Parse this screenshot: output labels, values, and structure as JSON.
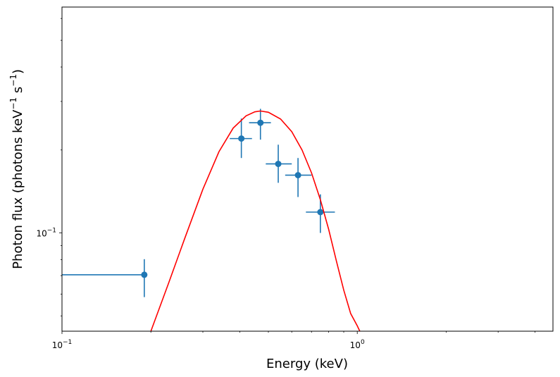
{
  "chart_data": {
    "type": "scatter",
    "title": "",
    "xlabel": "Energy (keV)",
    "ylabel": {
      "prefix": "Photon flux (photons keV",
      "exp1": "−1",
      "mid": " s",
      "exp2": "−1",
      "suffix": ")"
    },
    "xscale": "log",
    "yscale": "log",
    "xlim": [
      0.1,
      4.6
    ],
    "ylim": [
      0.044,
      0.66
    ],
    "grid": false,
    "legend": "none",
    "x_major_ticks": [
      {
        "value": 0.1,
        "base": "10",
        "exp": "−1"
      },
      {
        "value": 1.0,
        "base": "10",
        "exp": "0"
      }
    ],
    "y_major_ticks": [
      {
        "value": 0.1,
        "base": "10",
        "exp": "−1"
      }
    ],
    "series": [
      {
        "kind": "errorbar",
        "color": "#1f77b4",
        "points": [
          {
            "x": 0.19,
            "y": 0.0705,
            "xerr": [
              0.09,
              0.19
            ],
            "yerr": [
              0.0585,
              0.0803
            ]
          },
          {
            "x": 0.405,
            "y": 0.22,
            "xerr": [
              0.37,
              0.44
            ],
            "yerr": [
              0.187,
              0.26
            ]
          },
          {
            "x": 0.47,
            "y": 0.251,
            "xerr": [
              0.43,
              0.51
            ],
            "yerr": [
              0.218,
              0.282
            ]
          },
          {
            "x": 0.54,
            "y": 0.178,
            "xerr": [
              0.49,
              0.6
            ],
            "yerr": [
              0.152,
              0.209
            ]
          },
          {
            "x": 0.63,
            "y": 0.162,
            "xerr": [
              0.57,
              0.7
            ],
            "yerr": [
              0.135,
              0.187
            ]
          },
          {
            "x": 0.75,
            "y": 0.119,
            "xerr": [
              0.67,
              0.84
            ],
            "yerr": [
              0.1,
              0.138
            ]
          }
        ]
      },
      {
        "kind": "line",
        "color": "#ff0000",
        "x": [
          0.2,
          0.23,
          0.26,
          0.3,
          0.34,
          0.38,
          0.42,
          0.45,
          0.47,
          0.5,
          0.55,
          0.6,
          0.65,
          0.7,
          0.75,
          0.8,
          0.85,
          0.9,
          0.95,
          1.0,
          1.02
        ],
        "y": [
          0.044,
          0.066,
          0.095,
          0.144,
          0.197,
          0.24,
          0.266,
          0.275,
          0.277,
          0.274,
          0.259,
          0.233,
          0.2,
          0.165,
          0.132,
          0.103,
          0.079,
          0.062,
          0.051,
          0.046,
          0.044
        ]
      }
    ]
  }
}
